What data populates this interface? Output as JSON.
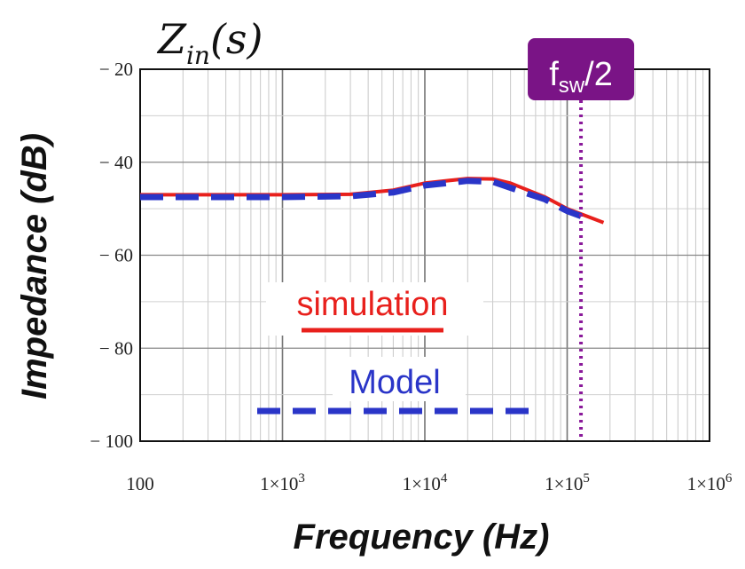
{
  "chart_data": {
    "type": "line",
    "title": "Z",
    "title_subscript": "in",
    "title_suffix": "(s)",
    "xlabel": "Frequency (Hz)",
    "ylabel": "Impedance (dB)",
    "x_scale": "log",
    "xlim": [
      100,
      1000000
    ],
    "ylim": [
      -100,
      -20
    ],
    "grid": true,
    "legend_placement": "center",
    "x_ticks": [
      {
        "value": 100,
        "base": "100",
        "exp": ""
      },
      {
        "value": 1000,
        "base": "1×10",
        "exp": "3"
      },
      {
        "value": 10000,
        "base": "1×10",
        "exp": "4"
      },
      {
        "value": 100000,
        "base": "1×10",
        "exp": "5"
      },
      {
        "value": 1000000,
        "base": "1×10",
        "exp": "6"
      }
    ],
    "y_ticks": [
      {
        "value": -20,
        "label": "− 20"
      },
      {
        "value": -40,
        "label": "− 40"
      },
      {
        "value": -60,
        "label": "− 60"
      },
      {
        "value": -80,
        "label": "− 80"
      },
      {
        "value": -100,
        "label": "− 100"
      }
    ],
    "series": [
      {
        "name": "simulation",
        "color": "#e8201c",
        "style": "solid",
        "x": [
          100,
          300,
          1000,
          3000,
          6000,
          10000,
          20000,
          30000,
          40000,
          70000,
          100000,
          180000
        ],
        "y": [
          -47,
          -47,
          -47,
          -46.9,
          -46,
          -44.5,
          -43.5,
          -43.6,
          -44.5,
          -47.5,
          -50,
          -53
        ]
      },
      {
        "name": "Model",
        "color": "#2a35c8",
        "style": "dashed",
        "x": [
          100,
          300,
          1000,
          3000,
          6000,
          10000,
          20000,
          30000,
          40000,
          70000,
          100000,
          150000
        ],
        "y": [
          -47.5,
          -47.5,
          -47.5,
          -47.3,
          -46.5,
          -45,
          -44,
          -44.2,
          -45.5,
          -48,
          -50.5,
          -52.5
        ]
      }
    ],
    "annotations": [
      {
        "text_main": "f",
        "text_sub": "sw",
        "text_suffix": "/2",
        "x": 125000,
        "line_color": "#8a1a9a",
        "box_color": "#7a1486",
        "line_style": "dotted"
      }
    ]
  }
}
